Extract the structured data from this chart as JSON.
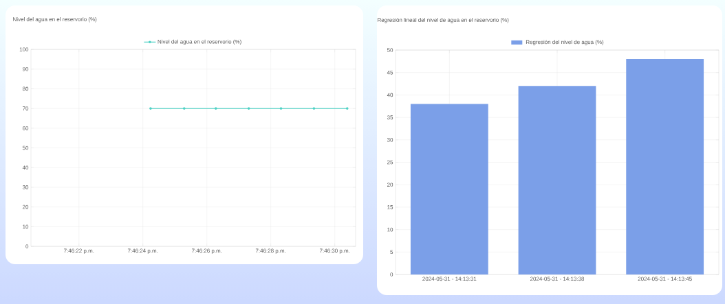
{
  "chart_data": [
    {
      "type": "line",
      "title": "Nivel del agua en el reservorio (%)",
      "x": [
        19.7734,
        19.773692,
        19.773967,
        19.774253,
        19.774533,
        19.774819,
        19.775108
      ],
      "series": [
        {
          "name": "Nivel del agua en el reservorio (%)",
          "color": "#4fd1c5",
          "values": [
            70,
            70,
            70,
            70,
            70,
            70,
            70
          ]
        }
      ],
      "xlim": [
        19.772361,
        19.775181
      ],
      "xticks": [
        {
          "value": 19.772778,
          "label": "7:46:22 p.m."
        },
        {
          "value": 19.773333,
          "label": "7:46:24 p.m."
        },
        {
          "value": 19.773889,
          "label": "7:46:26 p.m."
        },
        {
          "value": 19.774444,
          "label": "7:46:28 p.m."
        },
        {
          "value": 19.775,
          "label": "7:46:30 p.m."
        }
      ],
      "ylim": [
        0,
        100
      ],
      "yticks": [
        0,
        10,
        20,
        30,
        40,
        50,
        60,
        70,
        80,
        90,
        100
      ],
      "grid": true,
      "legend": "top",
      "marker": "circle"
    },
    {
      "type": "bar",
      "title": "Regresión lineal del nivel de agua en el reservorio (%)",
      "categories": [
        "2024-05-31 - 14:13:31",
        "2024-05-31 - 14:13:38",
        "2024-05-31 - 14:13:45"
      ],
      "series": [
        {
          "name": "Regresión del nivel de agua (%)",
          "color": "#7b9fe8",
          "values": [
            38,
            42,
            48
          ]
        }
      ],
      "ylim": [
        0,
        50
      ],
      "yticks": [
        0,
        5,
        10,
        15,
        20,
        25,
        30,
        35,
        40,
        45,
        50
      ],
      "grid": true,
      "legend": "top"
    }
  ]
}
